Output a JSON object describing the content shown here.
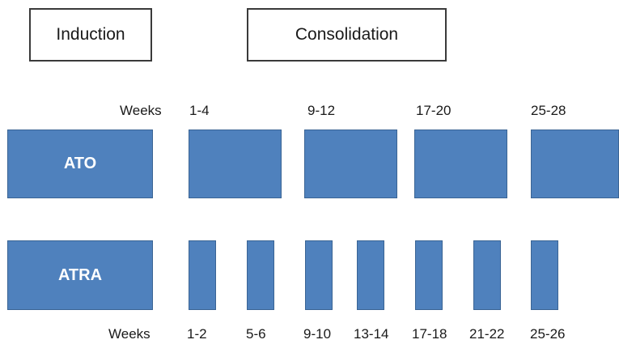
{
  "phases": {
    "induction": "Induction",
    "consolidation": "Consolidation"
  },
  "ato": {
    "name": "ATO",
    "weeks_label": "Weeks",
    "week_ranges": [
      "1-4",
      "9-12",
      "17-20",
      "25-28"
    ]
  },
  "atra": {
    "name": "ATRA",
    "weeks_label": "Weeks",
    "week_ranges": [
      "1-2",
      "5-6",
      "9-10",
      "13-14",
      "17-18",
      "21-22",
      "25-26"
    ]
  },
  "colors": {
    "bar_fill": "#4f81bd",
    "bar_border": "#3a6494",
    "text": "#1a1a1a"
  }
}
